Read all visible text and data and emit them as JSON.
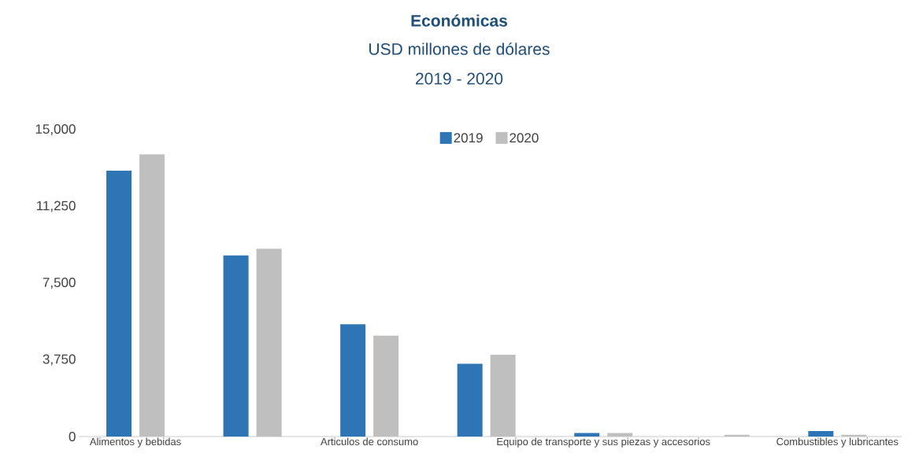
{
  "chart_data": {
    "type": "bar",
    "title": "Económicas",
    "subtitle": "USD millones de dólares",
    "annotations": [
      "2019 - 2020"
    ],
    "categories": [
      "Alimentos y bebidas",
      null,
      "Articulos de consumo",
      null,
      "Equipo de transporte y sus piezas y accesorios",
      null,
      "Combustibles y lubricantes"
    ],
    "series": [
      {
        "name": "2019",
        "color": "#2e75b6",
        "values": [
          13000,
          8860,
          5490,
          3560,
          170,
          0,
          270
        ]
      },
      {
        "name": "2020",
        "color": "#bfbfbf",
        "values": [
          13800,
          9180,
          4930,
          4000,
          170,
          85,
          85
        ]
      }
    ],
    "ylim": [
      0,
      15000
    ],
    "yticks": [
      {
        "value": 0,
        "label": "0"
      },
      {
        "value": 3750,
        "label": "3,750"
      },
      {
        "value": 7500,
        "label": "7,500"
      },
      {
        "value": 11250,
        "label": "11,250"
      },
      {
        "value": 15000,
        "label": "15,000"
      }
    ],
    "legend": "top"
  }
}
